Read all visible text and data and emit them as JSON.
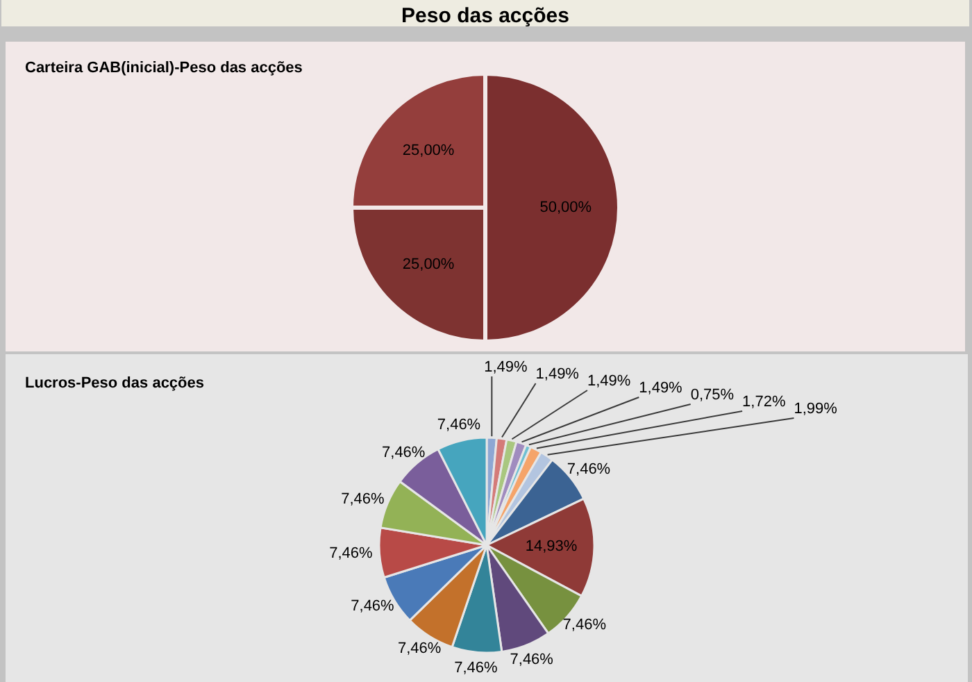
{
  "chart_data": [
    {
      "type": "other",
      "title": "Peso das acções"
    },
    {
      "type": "pie",
      "title": "Carteira GAB(inicial)-Peso das acções",
      "categories": [
        null,
        null,
        null
      ],
      "values": [
        50,
        25,
        25
      ],
      "value_labels": [
        "50,00%",
        "25,00%",
        "25,00%"
      ],
      "colors": [
        "#7b2f2f",
        "#7e3331",
        "#943e3c"
      ]
    },
    {
      "type": "pie",
      "title": "Lucros-Peso das acções",
      "categories": [
        null,
        null,
        null,
        null,
        null,
        null,
        null,
        null,
        null,
        null,
        null,
        null,
        null,
        null,
        null,
        null,
        null,
        null
      ],
      "values": [
        1.49,
        1.49,
        1.49,
        1.49,
        0.75,
        1.72,
        1.99,
        7.46,
        14.93,
        7.46,
        7.46,
        7.46,
        7.46,
        7.46,
        7.46,
        7.46,
        7.46,
        7.46
      ],
      "value_labels": [
        "1,49%",
        "1,49%",
        "1,49%",
        "1,49%",
        "0,75%",
        "1,72%",
        "1,99%",
        "7,46%",
        "14,93%",
        "7,46%",
        "7,46%",
        "7,46%",
        "7,46%",
        "7,46%",
        "7,46%",
        "7,46%",
        "7,46%",
        "7,46%"
      ],
      "colors": [
        "#8ea7d3",
        "#d47b79",
        "#a9c77f",
        "#a08cbf",
        "#6fc0d3",
        "#f5a46a",
        "#b3c5e0",
        "#3b6393",
        "#8f3a37",
        "#77913f",
        "#60497c",
        "#338499",
        "#c3712b",
        "#4a7ab8",
        "#b84a47",
        "#93b256",
        "#7a5e9b",
        "#46a5be"
      ]
    }
  ]
}
